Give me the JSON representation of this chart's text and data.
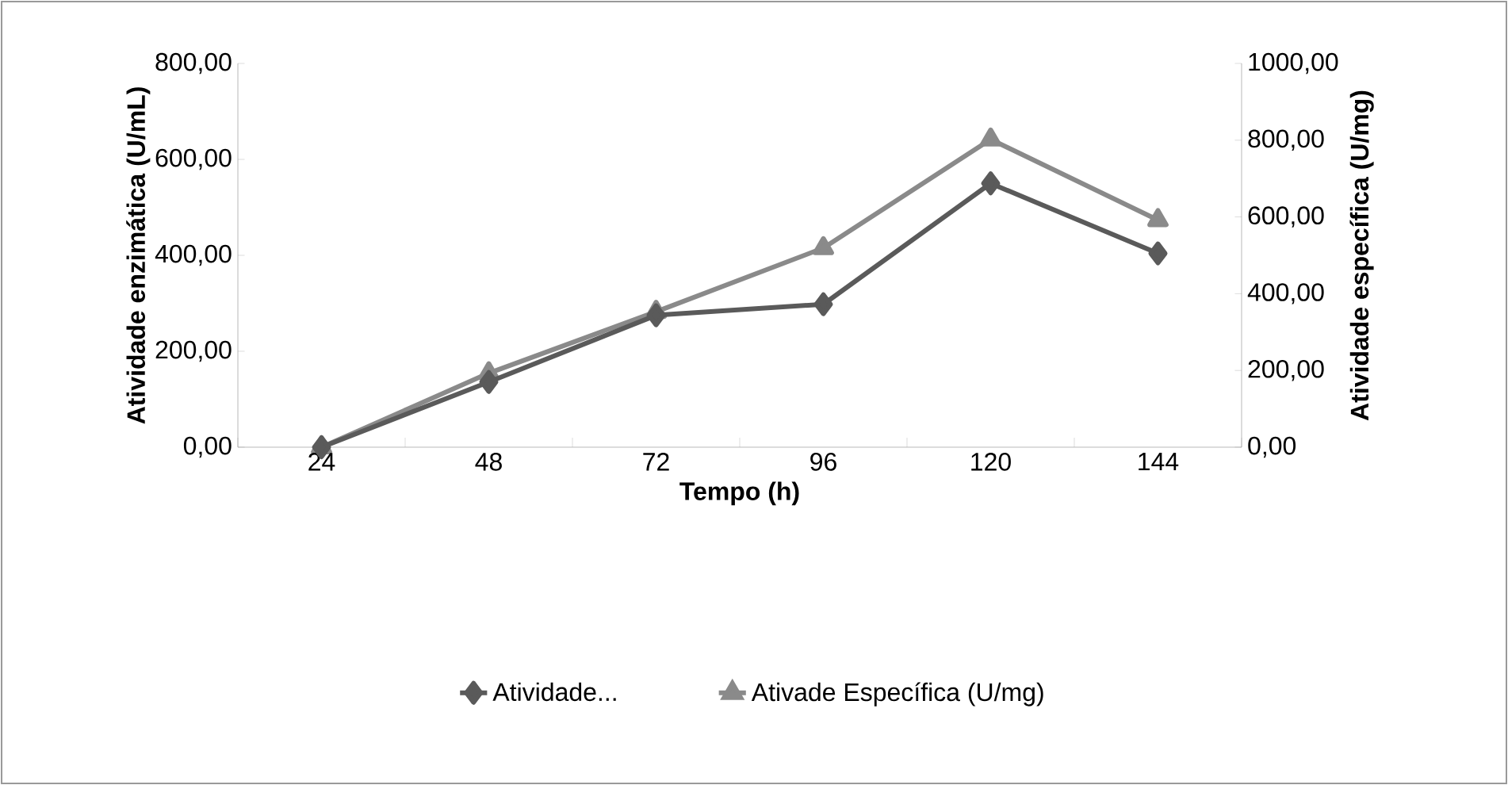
{
  "chart_data": {
    "type": "line",
    "xlabel": "Tempo (h)",
    "ylabel": "Atividade enzimática (U/mL)",
    "y2label": "Atividade específica (U/mg)",
    "categories": [
      "24",
      "48",
      "72",
      "96",
      "120",
      "144"
    ],
    "series": [
      {
        "name": "Atividade...",
        "color": "#5a5a5a",
        "marker": "diamond",
        "values": [
          0,
          136,
          275,
          298,
          550,
          404
        ]
      },
      {
        "name": "Ativade Específica (U/mg)",
        "color": "#8a8a8a",
        "marker": "triangle",
        "axis": "y2",
        "values": [
          0,
          193,
          353,
          519,
          802,
          592
        ]
      }
    ],
    "ylim": [
      0,
      800
    ],
    "yticks": [
      {
        "value": 0,
        "label": "0,00"
      },
      {
        "value": 200,
        "label": "200,00"
      },
      {
        "value": 400,
        "label": "400,00"
      },
      {
        "value": 600,
        "label": "600,00"
      },
      {
        "value": 800,
        "label": "800,00"
      }
    ],
    "y2lim": [
      0,
      1000
    ],
    "y2ticks": [
      {
        "value": 0,
        "label": "0,00"
      },
      {
        "value": 200,
        "label": "200,00"
      },
      {
        "value": 400,
        "label": "400,00"
      },
      {
        "value": 600,
        "label": "600,00"
      },
      {
        "value": 800,
        "label": "800,00"
      },
      {
        "value": 1000,
        "label": "1000,00"
      }
    ],
    "grid": false,
    "legend": "bottom",
    "line_style": "solid"
  }
}
